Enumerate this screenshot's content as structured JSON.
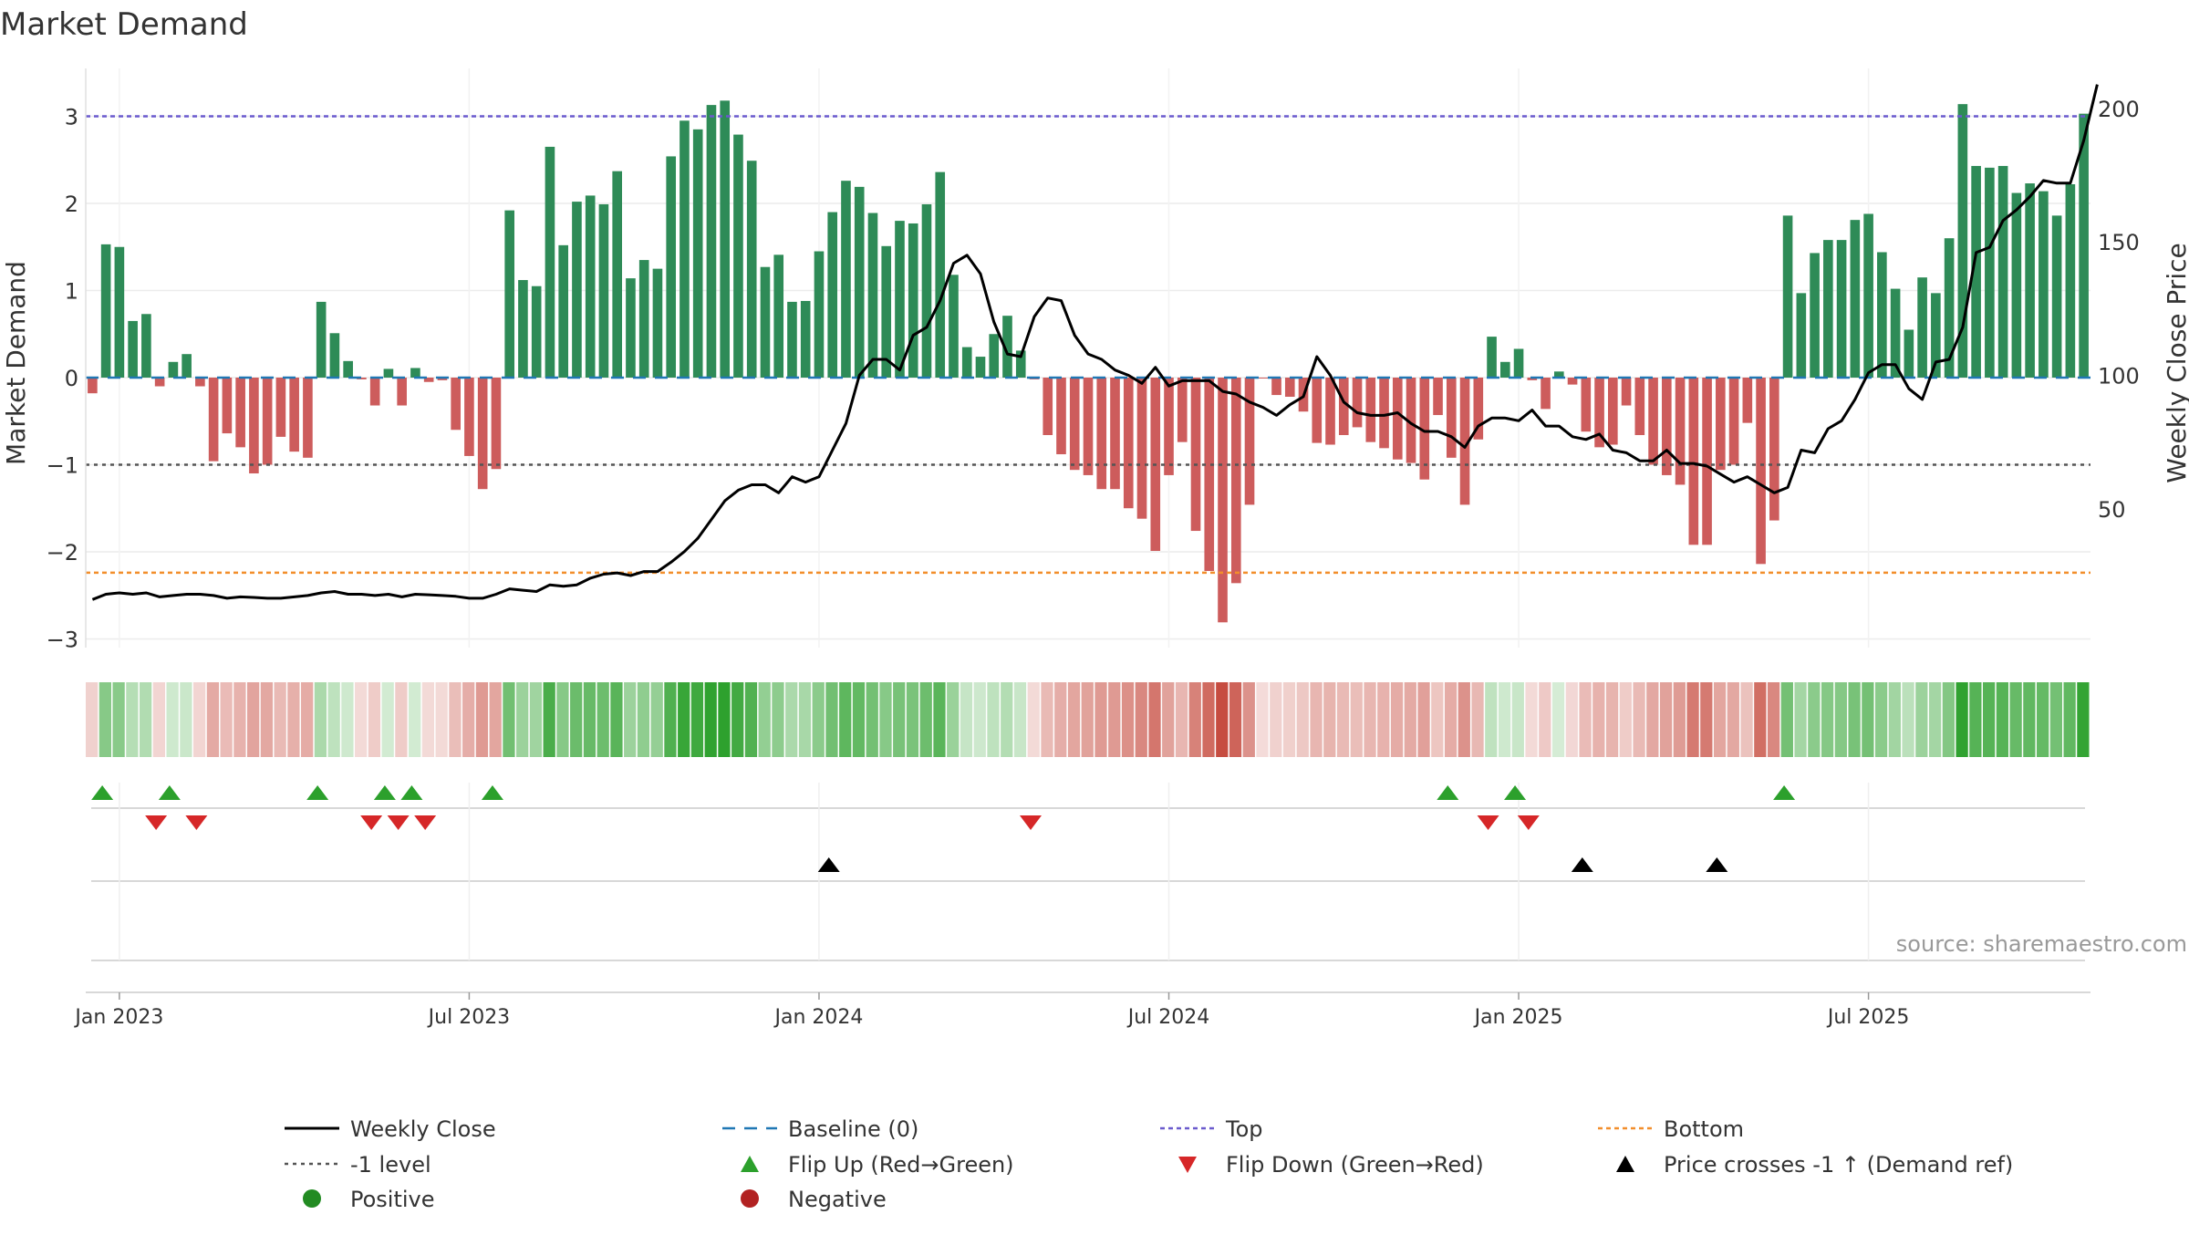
{
  "chart_data": {
    "type": "bar",
    "title": "Market Demand",
    "ylabel": "Market Demand",
    "y2label": "Weekly Close Price",
    "ylim": [
      -3.1,
      3.55
    ],
    "y2lim": [
      -2,
      215
    ],
    "yticks": [
      -3,
      -2,
      -1,
      0,
      1,
      2,
      3
    ],
    "yticklabels": [
      "−3",
      "−2",
      "−1",
      "0",
      "1",
      "2",
      "3"
    ],
    "y2ticks": [
      50,
      100,
      150,
      200
    ],
    "y2ticklabels": [
      "50",
      "100",
      "150",
      "200"
    ],
    "xticks": [
      {
        "week": 1,
        "label": "Jan 2023"
      },
      {
        "week": 27,
        "label": "Jul 2023"
      },
      {
        "week": 53,
        "label": "Jan 2024"
      },
      {
        "week": 79,
        "label": "Jul 2024"
      },
      {
        "week": 105,
        "label": "Jan 2025"
      },
      {
        "week": 131,
        "label": "Jul 2025"
      }
    ],
    "start_week": -1,
    "demand": [
      -0.18,
      1.53,
      1.5,
      0.65,
      0.73,
      -0.1,
      0.18,
      0.27,
      -0.1,
      -0.96,
      -0.64,
      -0.8,
      -1.1,
      -1.0,
      -0.68,
      -0.85,
      -0.92,
      0.87,
      0.51,
      0.19,
      -0.02,
      -0.32,
      0.1,
      -0.32,
      0.11,
      -0.05,
      -0.03,
      -0.6,
      -0.9,
      -1.28,
      -1.05,
      1.92,
      1.12,
      1.05,
      2.65,
      1.52,
      2.02,
      2.09,
      1.99,
      2.37,
      1.14,
      1.35,
      1.25,
      2.54,
      2.95,
      2.85,
      3.13,
      3.18,
      2.79,
      2.49,
      1.27,
      1.41,
      0.87,
      0.88,
      1.45,
      1.9,
      2.26,
      2.19,
      1.89,
      1.51,
      1.8,
      1.77,
      1.99,
      2.36,
      1.18,
      0.35,
      0.24,
      0.5,
      0.71,
      0.31,
      -0.02,
      -0.66,
      -0.88,
      -1.06,
      -1.12,
      -1.28,
      -1.28,
      -1.5,
      -1.62,
      -1.99,
      -1.12,
      -0.74,
      -1.76,
      -2.22,
      -2.81,
      -2.36,
      -1.46,
      -0.01,
      -0.2,
      -0.22,
      -0.39,
      -0.75,
      -0.77,
      -0.66,
      -0.57,
      -0.74,
      -0.81,
      -0.94,
      -0.98,
      -1.17,
      -0.43,
      -0.92,
      -1.46,
      -0.71,
      0.47,
      0.18,
      0.33,
      -0.03,
      -0.36,
      0.07,
      -0.08,
      -0.62,
      -0.8,
      -0.77,
      -0.32,
      -0.66,
      -1.0,
      -1.12,
      -1.23,
      -1.92,
      -1.92,
      -1.06,
      -1.0,
      -0.52,
      -2.14,
      -1.64,
      1.86,
      0.97,
      1.43,
      1.58,
      1.58,
      1.81,
      1.88,
      1.44,
      1.02,
      0.55,
      1.15,
      0.97,
      1.6,
      3.14,
      2.43,
      2.41,
      2.43,
      2.12,
      2.23,
      2.14,
      1.86,
      2.22,
      3.03
    ],
    "price": [
      16,
      18,
      18.5,
      18,
      18.5,
      17,
      17.5,
      18,
      18,
      17.5,
      16.5,
      17,
      16.8,
      16.5,
      16.5,
      17,
      17.5,
      18.5,
      19,
      18,
      18,
      17.5,
      18,
      17,
      18,
      17.8,
      17.5,
      17.2,
      16.5,
      16.5,
      18,
      20,
      19.5,
      19,
      21.5,
      21,
      21.5,
      24,
      25.5,
      26,
      25,
      26.5,
      26.5,
      30,
      34,
      39,
      46,
      53,
      57,
      59,
      59,
      56,
      62,
      60,
      62,
      72,
      82,
      100,
      106,
      106,
      102,
      115,
      118,
      128,
      142,
      145,
      138,
      120,
      108,
      107,
      122,
      129,
      128,
      115,
      108,
      106,
      102,
      100,
      97,
      103,
      96,
      98,
      98,
      98,
      94,
      93,
      90,
      88,
      85,
      89,
      92,
      107,
      100,
      90,
      86,
      85,
      85,
      86,
      82,
      79,
      79,
      77,
      73,
      81,
      84,
      84,
      83,
      87,
      81,
      81,
      77,
      76,
      78,
      72,
      71,
      68,
      68,
      72,
      67,
      67,
      66,
      63,
      60,
      62,
      59,
      56,
      58,
      72,
      71,
      80,
      83,
      91,
      101,
      104,
      104,
      95,
      91,
      105,
      106,
      118,
      146,
      148,
      158,
      162,
      167,
      173,
      172,
      172,
      188,
      209
    ]
  },
  "levels": {
    "top": 3.0,
    "bottom": -2.24,
    "minus_one": -1.0,
    "baseline": 0.0
  },
  "markers": {
    "flip_up_weeks": [
      0,
      5,
      16,
      21,
      23,
      29,
      100,
      105,
      125
    ],
    "flip_down_weeks": [
      4,
      7,
      20,
      22,
      24,
      69,
      103,
      106
    ],
    "price_cross_weeks": [
      54,
      110,
      120
    ]
  },
  "colors": {
    "positive_bar": "#2e8b57",
    "negative_bar": "#cd5c5c",
    "price_line": "#000000",
    "baseline": "#1f77b4",
    "top": "#6a5acd",
    "minus_one": "#555555",
    "bottom": "#f28e2b",
    "flip_up": "#2ca02c",
    "flip_down": "#d62728",
    "positive_dot": "#228b22",
    "negative_dot": "#b22222",
    "grid": "#dddddd",
    "axis_text": "#333333"
  },
  "source": "source: sharemaestro.com",
  "legend": {
    "weekly_close": "Weekly Close",
    "baseline": "Baseline (0)",
    "top": "Top",
    "bottom": "Bottom",
    "minus_one": "-1 level",
    "flip_up": "Flip Up (Red→Green)",
    "flip_down": "Flip Down (Green→Red)",
    "price_cross": "Price crosses -1 ↑ (Demand ref)",
    "positive": "Positive",
    "negative": "Negative"
  }
}
